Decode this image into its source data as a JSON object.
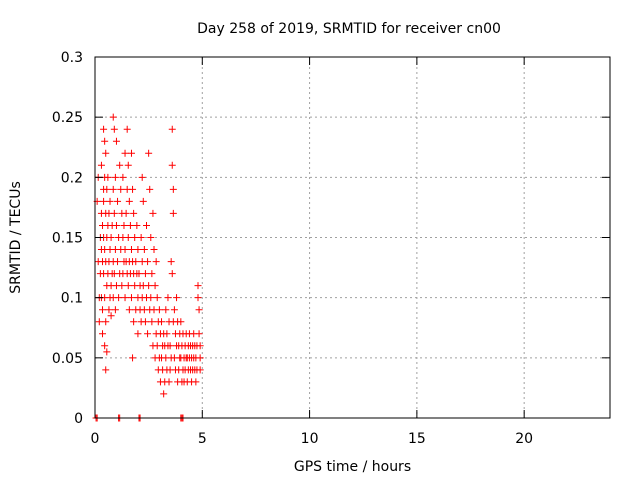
{
  "chart_data": {
    "type": "scatter",
    "title": "Day 258 of 2019, SRMTID for receiver cn00",
    "xlabel": "GPS time / hours",
    "ylabel": "SRMTID / TECUs",
    "xlim": [
      0,
      24
    ],
    "ylim": [
      0,
      0.3
    ],
    "xticks": [
      0,
      5,
      10,
      15,
      20
    ],
    "xtick_labels": [
      "0",
      "5",
      "10",
      "15",
      "20"
    ],
    "yticks": [
      0,
      0.05,
      0.1,
      0.15,
      0.2,
      0.25,
      0.3
    ],
    "ytick_labels": [
      "0",
      "0.05",
      "0.1",
      "0.15",
      "0.2",
      "0.25",
      "0.3"
    ],
    "grid": true,
    "marker": "plus",
    "colors": {
      "series": "#ff0000",
      "grid": "#a0a0a0",
      "axis": "#000000"
    },
    "series": [
      {
        "name": "SRMTID",
        "points": [
          [
            0.05,
            0.0
          ],
          [
            0.1,
            0.0
          ],
          [
            1.1,
            0.0
          ],
          [
            1.15,
            0.0
          ],
          [
            2.05,
            0.0
          ],
          [
            2.1,
            0.0
          ],
          [
            4.0,
            0.0
          ],
          [
            4.05,
            0.0
          ],
          [
            4.1,
            0.0
          ],
          [
            0.1,
            0.18
          ],
          [
            0.15,
            0.2
          ],
          [
            0.15,
            0.13
          ],
          [
            0.2,
            0.1
          ],
          [
            0.2,
            0.08
          ],
          [
            0.25,
            0.15
          ],
          [
            0.25,
            0.12
          ],
          [
            0.3,
            0.21
          ],
          [
            0.3,
            0.17
          ],
          [
            0.3,
            0.14
          ],
          [
            0.3,
            0.1
          ],
          [
            0.35,
            0.16
          ],
          [
            0.35,
            0.13
          ],
          [
            0.35,
            0.09
          ],
          [
            0.35,
            0.07
          ],
          [
            0.4,
            0.24
          ],
          [
            0.4,
            0.19
          ],
          [
            0.4,
            0.18
          ],
          [
            0.4,
            0.15
          ],
          [
            0.4,
            0.12
          ],
          [
            0.45,
            0.23
          ],
          [
            0.45,
            0.2
          ],
          [
            0.45,
            0.14
          ],
          [
            0.45,
            0.1
          ],
          [
            0.45,
            0.06
          ],
          [
            0.5,
            0.22
          ],
          [
            0.5,
            0.17
          ],
          [
            0.5,
            0.13
          ],
          [
            0.5,
            0.08
          ],
          [
            0.5,
            0.04
          ],
          [
            0.55,
            0.19
          ],
          [
            0.55,
            0.15
          ],
          [
            0.55,
            0.11
          ],
          [
            0.55,
            0.055
          ],
          [
            0.6,
            0.2
          ],
          [
            0.6,
            0.16
          ],
          [
            0.6,
            0.12
          ],
          [
            0.65,
            0.17
          ],
          [
            0.65,
            0.13
          ],
          [
            0.65,
            0.09
          ],
          [
            0.7,
            0.18
          ],
          [
            0.7,
            0.14
          ],
          [
            0.7,
            0.1
          ],
          [
            0.75,
            0.15
          ],
          [
            0.75,
            0.11
          ],
          [
            0.75,
            0.085
          ],
          [
            0.8,
            0.16
          ],
          [
            0.8,
            0.12
          ],
          [
            0.85,
            0.25
          ],
          [
            0.85,
            0.19
          ],
          [
            0.85,
            0.13
          ],
          [
            0.85,
            0.1
          ],
          [
            0.9,
            0.24
          ],
          [
            0.9,
            0.17
          ],
          [
            0.9,
            0.12
          ],
          [
            0.95,
            0.2
          ],
          [
            0.95,
            0.14
          ],
          [
            0.95,
            0.09
          ],
          [
            1.0,
            0.23
          ],
          [
            1.0,
            0.16
          ],
          [
            1.0,
            0.11
          ],
          [
            1.05,
            0.18
          ],
          [
            1.05,
            0.13
          ],
          [
            1.1,
            0.15
          ],
          [
            1.1,
            0.1
          ],
          [
            1.15,
            0.21
          ],
          [
            1.15,
            0.12
          ],
          [
            1.2,
            0.19
          ],
          [
            1.2,
            0.14
          ],
          [
            1.25,
            0.17
          ],
          [
            1.25,
            0.11
          ],
          [
            1.3,
            0.2
          ],
          [
            1.3,
            0.15
          ],
          [
            1.3,
            0.12
          ],
          [
            1.35,
            0.16
          ],
          [
            1.35,
            0.13
          ],
          [
            1.4,
            0.22
          ],
          [
            1.4,
            0.14
          ],
          [
            1.4,
            0.1
          ],
          [
            1.45,
            0.17
          ],
          [
            1.45,
            0.13
          ],
          [
            1.5,
            0.24
          ],
          [
            1.5,
            0.19
          ],
          [
            1.5,
            0.12
          ],
          [
            1.55,
            0.21
          ],
          [
            1.55,
            0.15
          ],
          [
            1.55,
            0.11
          ],
          [
            1.6,
            0.18
          ],
          [
            1.6,
            0.13
          ],
          [
            1.6,
            0.09
          ],
          [
            1.65,
            0.16
          ],
          [
            1.65,
            0.12
          ],
          [
            1.7,
            0.22
          ],
          [
            1.7,
            0.14
          ],
          [
            1.7,
            0.1
          ],
          [
            1.75,
            0.19
          ],
          [
            1.75,
            0.13
          ],
          [
            1.75,
            0.05
          ],
          [
            1.8,
            0.17
          ],
          [
            1.8,
            0.12
          ],
          [
            1.8,
            0.08
          ],
          [
            1.85,
            0.15
          ],
          [
            1.85,
            0.11
          ],
          [
            1.9,
            0.13
          ],
          [
            1.9,
            0.09
          ],
          [
            1.95,
            0.16
          ],
          [
            1.95,
            0.12
          ],
          [
            2.0,
            0.14
          ],
          [
            2.0,
            0.1
          ],
          [
            2.0,
            0.07
          ],
          [
            2.05,
            0.12
          ],
          [
            2.1,
            0.11
          ],
          [
            2.1,
            0.09
          ],
          [
            2.15,
            0.15
          ],
          [
            2.15,
            0.08
          ],
          [
            2.2,
            0.2
          ],
          [
            2.2,
            0.13
          ],
          [
            2.2,
            0.1
          ],
          [
            2.25,
            0.18
          ],
          [
            2.25,
            0.11
          ],
          [
            2.3,
            0.14
          ],
          [
            2.3,
            0.09
          ],
          [
            2.35,
            0.12
          ],
          [
            2.35,
            0.08
          ],
          [
            2.4,
            0.16
          ],
          [
            2.4,
            0.1
          ],
          [
            2.45,
            0.13
          ],
          [
            2.45,
            0.07
          ],
          [
            2.5,
            0.22
          ],
          [
            2.5,
            0.11
          ],
          [
            2.55,
            0.19
          ],
          [
            2.55,
            0.09
          ],
          [
            2.6,
            0.15
          ],
          [
            2.6,
            0.1
          ],
          [
            2.65,
            0.12
          ],
          [
            2.65,
            0.08
          ],
          [
            2.7,
            0.17
          ],
          [
            2.7,
            0.06
          ],
          [
            2.75,
            0.14
          ],
          [
            2.75,
            0.09
          ],
          [
            2.8,
            0.11
          ],
          [
            2.8,
            0.05
          ],
          [
            2.85,
            0.13
          ],
          [
            2.85,
            0.07
          ],
          [
            2.9,
            0.1
          ],
          [
            2.9,
            0.06
          ],
          [
            2.95,
            0.08
          ],
          [
            2.95,
            0.04
          ],
          [
            3.0,
            0.09
          ],
          [
            3.0,
            0.05
          ],
          [
            3.05,
            0.07
          ],
          [
            3.05,
            0.03
          ],
          [
            3.1,
            0.08
          ],
          [
            3.1,
            0.05
          ],
          [
            3.15,
            0.06
          ],
          [
            3.15,
            0.04
          ],
          [
            3.2,
            0.07
          ],
          [
            3.2,
            0.02
          ],
          [
            3.25,
            0.06
          ],
          [
            3.25,
            0.03
          ],
          [
            3.3,
            0.09
          ],
          [
            3.3,
            0.05
          ],
          [
            3.35,
            0.07
          ],
          [
            3.35,
            0.04
          ],
          [
            3.4,
            0.1
          ],
          [
            3.4,
            0.06
          ],
          [
            3.45,
            0.08
          ],
          [
            3.45,
            0.03
          ],
          [
            3.5,
            0.06
          ],
          [
            3.5,
            0.04
          ],
          [
            3.55,
            0.13
          ],
          [
            3.55,
            0.05
          ],
          [
            3.6,
            0.24
          ],
          [
            3.6,
            0.21
          ],
          [
            3.6,
            0.12
          ],
          [
            3.65,
            0.19
          ],
          [
            3.65,
            0.17
          ],
          [
            3.65,
            0.08
          ],
          [
            3.7,
            0.09
          ],
          [
            3.7,
            0.05
          ],
          [
            3.75,
            0.07
          ],
          [
            3.75,
            0.04
          ],
          [
            3.8,
            0.1
          ],
          [
            3.8,
            0.06
          ],
          [
            3.85,
            0.08
          ],
          [
            3.85,
            0.03
          ],
          [
            3.9,
            0.06
          ],
          [
            3.9,
            0.04
          ],
          [
            3.95,
            0.07
          ],
          [
            3.95,
            0.05
          ],
          [
            4.0,
            0.08
          ],
          [
            4.0,
            0.05
          ],
          [
            4.05,
            0.06
          ],
          [
            4.05,
            0.03
          ],
          [
            4.1,
            0.07
          ],
          [
            4.1,
            0.04
          ],
          [
            4.15,
            0.05
          ],
          [
            4.15,
            0.03
          ],
          [
            4.2,
            0.06
          ],
          [
            4.2,
            0.04
          ],
          [
            4.25,
            0.07
          ],
          [
            4.25,
            0.05
          ],
          [
            4.3,
            0.05
          ],
          [
            4.3,
            0.03
          ],
          [
            4.35,
            0.06
          ],
          [
            4.35,
            0.04
          ],
          [
            4.4,
            0.07
          ],
          [
            4.4,
            0.05
          ],
          [
            4.45,
            0.06
          ],
          [
            4.45,
            0.04
          ],
          [
            4.5,
            0.05
          ],
          [
            4.5,
            0.03
          ],
          [
            4.55,
            0.06
          ],
          [
            4.55,
            0.04
          ],
          [
            4.6,
            0.07
          ],
          [
            4.6,
            0.05
          ],
          [
            4.65,
            0.06
          ],
          [
            4.65,
            0.04
          ],
          [
            4.7,
            0.05
          ],
          [
            4.7,
            0.03
          ],
          [
            4.75,
            0.06
          ],
          [
            4.75,
            0.04
          ],
          [
            4.8,
            0.11
          ],
          [
            4.8,
            0.1
          ],
          [
            4.85,
            0.09
          ],
          [
            4.85,
            0.07
          ],
          [
            4.9,
            0.06
          ],
          [
            4.9,
            0.05
          ],
          [
            4.9,
            0.04
          ]
        ]
      }
    ]
  }
}
